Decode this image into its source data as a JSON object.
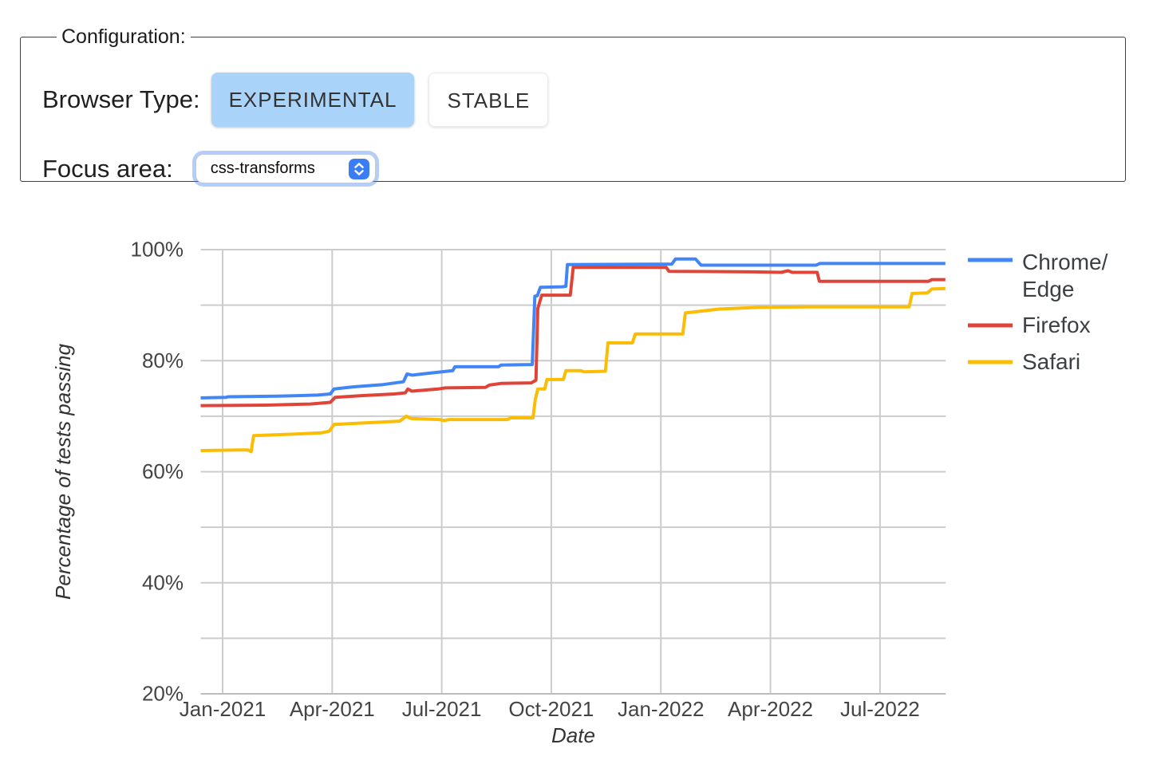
{
  "config": {
    "legend": "Configuration:",
    "browser_type_label": "Browser Type:",
    "browser_type_options": [
      {
        "label": "EXPERIMENTAL",
        "selected": true
      },
      {
        "label": "STABLE",
        "selected": false
      }
    ],
    "focus_area_label": "Focus area:",
    "focus_area": {
      "value": "css-transforms"
    },
    "accent": {
      "selected_button_bg": "#A9D3F9",
      "select_focus_ring": "#4285F4",
      "stepper_bg": "#3B7CF7"
    }
  },
  "chart_data": {
    "type": "line",
    "title": "",
    "xlabel": "Date",
    "ylabel": "Percentage of tests passing",
    "x_unit": "months since Jan-2021",
    "xlim": [
      -0.6,
      19.8
    ],
    "ylim": [
      20,
      100
    ],
    "grid": true,
    "grid_step": 10,
    "legend_position": "right",
    "x_ticks": [
      {
        "value": 0,
        "label": "Jan-2021"
      },
      {
        "value": 3,
        "label": "Apr-2021"
      },
      {
        "value": 6,
        "label": "Jul-2021"
      },
      {
        "value": 9,
        "label": "Oct-2021"
      },
      {
        "value": 12,
        "label": "Jan-2022"
      },
      {
        "value": 15,
        "label": "Apr-2022"
      },
      {
        "value": 18,
        "label": "Jul-2022"
      }
    ],
    "y_ticks": [
      {
        "value": 100,
        "label": "100%"
      },
      {
        "value": 80,
        "label": "80%"
      },
      {
        "value": 60,
        "label": "60%"
      },
      {
        "value": 40,
        "label": "40%"
      },
      {
        "value": 20,
        "label": "20%"
      }
    ],
    "colors": {
      "grid": "#cccccc",
      "baseline": "#bdbdbd",
      "tick_text": "#444444",
      "axis_title_text": "#333333",
      "legend_text": "#3c4043"
    },
    "series": [
      {
        "id": "chrome-edge",
        "name": "Chrome/Edge",
        "legend_lines": [
          "Chrome/",
          "Edge"
        ],
        "color": "#4285F4",
        "points": [
          [
            -0.6,
            73.3
          ],
          [
            0.1,
            73.4
          ],
          [
            0.15,
            73.5
          ],
          [
            1.5,
            73.6
          ],
          [
            2.6,
            73.8
          ],
          [
            2.95,
            74.0
          ],
          [
            3.05,
            74.9
          ],
          [
            3.6,
            75.3
          ],
          [
            4.4,
            75.7
          ],
          [
            4.95,
            76.2
          ],
          [
            5.05,
            77.6
          ],
          [
            5.2,
            77.4
          ],
          [
            5.45,
            77.6
          ],
          [
            6.0,
            78.0
          ],
          [
            6.3,
            78.2
          ],
          [
            6.36,
            78.9
          ],
          [
            7.55,
            78.9
          ],
          [
            7.62,
            79.2
          ],
          [
            8.48,
            79.3
          ],
          [
            8.55,
            91.6
          ],
          [
            8.62,
            91.7
          ],
          [
            8.7,
            93.2
          ],
          [
            9.3,
            93.3
          ],
          [
            9.4,
            93.4
          ],
          [
            9.44,
            97.3
          ],
          [
            12.3,
            97.4
          ],
          [
            12.4,
            98.3
          ],
          [
            12.95,
            98.3
          ],
          [
            13.1,
            97.2
          ],
          [
            16.25,
            97.2
          ],
          [
            16.35,
            97.5
          ],
          [
            19.79,
            97.5
          ]
        ]
      },
      {
        "id": "firefox",
        "name": "Firefox",
        "legend_lines": [
          "Firefox"
        ],
        "color": "#E04438",
        "points": [
          [
            -0.6,
            71.9
          ],
          [
            1.2,
            72.0
          ],
          [
            2.4,
            72.2
          ],
          [
            2.95,
            72.5
          ],
          [
            3.08,
            73.4
          ],
          [
            3.8,
            73.7
          ],
          [
            4.7,
            74.0
          ],
          [
            5.0,
            74.2
          ],
          [
            5.07,
            74.9
          ],
          [
            5.18,
            74.5
          ],
          [
            5.9,
            74.9
          ],
          [
            6.1,
            75.1
          ],
          [
            7.2,
            75.2
          ],
          [
            7.3,
            75.6
          ],
          [
            7.62,
            75.9
          ],
          [
            8.45,
            76.0
          ],
          [
            8.58,
            76.5
          ],
          [
            8.63,
            89.4
          ],
          [
            8.74,
            91.8
          ],
          [
            9.52,
            91.8
          ],
          [
            9.6,
            96.8
          ],
          [
            12.15,
            96.8
          ],
          [
            12.22,
            96.1
          ],
          [
            14.5,
            96.0
          ],
          [
            15.3,
            95.9
          ],
          [
            15.48,
            96.2
          ],
          [
            15.6,
            95.9
          ],
          [
            16.28,
            95.9
          ],
          [
            16.34,
            94.3
          ],
          [
            19.33,
            94.3
          ],
          [
            19.42,
            94.6
          ],
          [
            19.79,
            94.6
          ]
        ]
      },
      {
        "id": "safari",
        "name": "Safari",
        "legend_lines": [
          "Safari"
        ],
        "color": "#FBBC04",
        "points": [
          [
            -0.6,
            63.8
          ],
          [
            0.4,
            63.9
          ],
          [
            0.7,
            63.9
          ],
          [
            0.78,
            63.6
          ],
          [
            0.85,
            66.5
          ],
          [
            2.0,
            66.8
          ],
          [
            2.7,
            67.0
          ],
          [
            2.92,
            67.3
          ],
          [
            3.05,
            68.5
          ],
          [
            3.9,
            68.8
          ],
          [
            4.85,
            69.1
          ],
          [
            5.03,
            70.0
          ],
          [
            5.15,
            69.6
          ],
          [
            5.95,
            69.4
          ],
          [
            6.05,
            69.2
          ],
          [
            6.2,
            69.4
          ],
          [
            7.8,
            69.4
          ],
          [
            7.88,
            69.7
          ],
          [
            8.5,
            69.7
          ],
          [
            8.56,
            73.0
          ],
          [
            8.63,
            74.9
          ],
          [
            8.82,
            74.9
          ],
          [
            8.88,
            76.6
          ],
          [
            9.33,
            76.6
          ],
          [
            9.4,
            78.2
          ],
          [
            9.8,
            78.2
          ],
          [
            9.9,
            78.0
          ],
          [
            10.48,
            78.1
          ],
          [
            10.55,
            83.2
          ],
          [
            11.22,
            83.2
          ],
          [
            11.3,
            84.8
          ],
          [
            12.6,
            84.8
          ],
          [
            12.67,
            88.6
          ],
          [
            13.2,
            89.0
          ],
          [
            13.6,
            89.3
          ],
          [
            14.7,
            89.6
          ],
          [
            16.0,
            89.7
          ],
          [
            18.8,
            89.7
          ],
          [
            18.88,
            92.1
          ],
          [
            19.3,
            92.2
          ],
          [
            19.42,
            92.9
          ],
          [
            19.79,
            93.0
          ]
        ]
      }
    ]
  }
}
